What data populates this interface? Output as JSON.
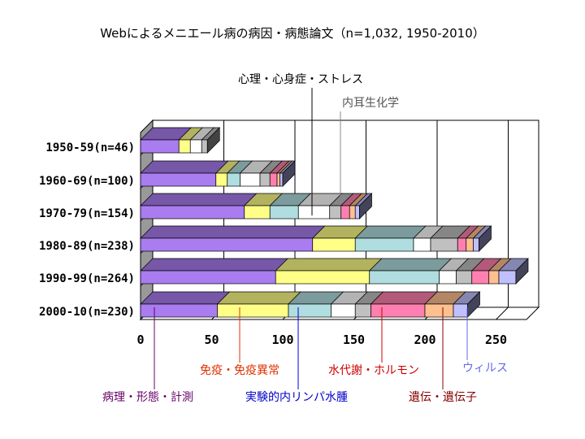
{
  "chart_data": {
    "type": "bar",
    "orientation": "horizontal",
    "stacked": true,
    "style": "3d",
    "title": "Webによるメニエール病の病因・病態論文（n=1,032, 1950-2010）",
    "categories": [
      "1950-59(n=46)",
      "1960-69(n=100)",
      "1970-79(n=154)",
      "1980-89(n=238)",
      "1990-99(n=264)",
      "2000-10(n=230)"
    ],
    "series": [
      {
        "name": "病理・形態・計測",
        "color": "#a97cf0",
        "values": [
          27,
          53,
          73,
          121,
          95,
          54
        ]
      },
      {
        "name": "免疫・免疫異常",
        "color": "#ffff88",
        "values": [
          8,
          8,
          18,
          30,
          66,
          50
        ]
      },
      {
        "name": "実験的内リンパ水腫",
        "color": "#b0dde0",
        "values": [
          0,
          9,
          20,
          41,
          49,
          30
        ]
      },
      {
        "name": "心理・心身症・ストレス",
        "color": "#ffffff",
        "values": [
          8,
          14,
          22,
          12,
          12,
          17
        ]
      },
      {
        "name": "内耳生化学",
        "color": "#c0c0c0",
        "values": [
          4,
          7,
          8,
          19,
          11,
          11
        ]
      },
      {
        "name": "水代謝・ホルモン",
        "color": "#ff80b0",
        "values": [
          0,
          5,
          6,
          6,
          12,
          38
        ]
      },
      {
        "name": "遺伝・遺伝子",
        "color": "#ffc090",
        "values": [
          0,
          2,
          4,
          5,
          7,
          20
        ]
      },
      {
        "name": "ウィルス",
        "color": "#c0c0ff",
        "values": [
          0,
          2,
          3,
          4,
          12,
          10
        ]
      }
    ],
    "xlim": [
      0,
      280
    ],
    "xticks": [
      0,
      50,
      100,
      150,
      200,
      250
    ],
    "grid": true,
    "legend": "callouts",
    "callouts": {
      "top": [
        {
          "series": 3,
          "text": "心理・心身症・ストレス",
          "color": "#000000"
        },
        {
          "series": 4,
          "text": "内耳生化学",
          "color": "#555555"
        }
      ],
      "bottom": [
        {
          "series": 0,
          "text": "病理・形態・計測",
          "color": "#660066"
        },
        {
          "series": 1,
          "text": "免疫・免疫異常",
          "color": "#e03000"
        },
        {
          "series": 2,
          "text": "実験的内リンパ水腫",
          "color": "#0000cc"
        },
        {
          "series": 5,
          "text": "水代謝・ホルモン",
          "color": "#cc0000"
        },
        {
          "series": 6,
          "text": "遺伝・遺伝子",
          "color": "#880000"
        },
        {
          "series": 7,
          "text": "ウィルス",
          "color": "#6666ee"
        }
      ]
    }
  }
}
